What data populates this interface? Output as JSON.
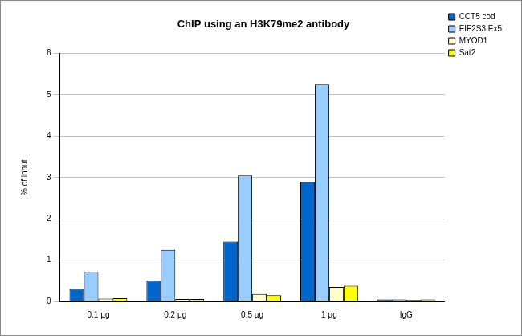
{
  "chart_data": {
    "type": "bar",
    "title": "ChIP using an H3K79me2 antibody",
    "y_label": "% of input",
    "categories": [
      "0.1 µg",
      "0.2 µg",
      "0.5 µg",
      "1 µg",
      "IgG"
    ],
    "series": [
      {
        "name": "CCT5 cod",
        "color": "#0066cc",
        "values": [
          0.3,
          0.5,
          1.45,
          2.9,
          0.05
        ]
      },
      {
        "name": "EIF2S3 Ex5",
        "color": "#99ccff",
        "values": [
          0.72,
          1.25,
          3.05,
          5.25,
          0.05
        ]
      },
      {
        "name": "MYOD1",
        "color": "#ffffcc",
        "values": [
          0.07,
          0.06,
          0.18,
          0.35,
          0.04
        ]
      },
      {
        "name": "Sat2",
        "color": "#ffff00",
        "values": [
          0.08,
          0.06,
          0.15,
          0.38,
          0.05
        ]
      }
    ],
    "ylim": [
      0,
      6
    ],
    "yticks": [
      0,
      1,
      2,
      3,
      4,
      5,
      6
    ],
    "grid": true,
    "legend": "upper right"
  }
}
